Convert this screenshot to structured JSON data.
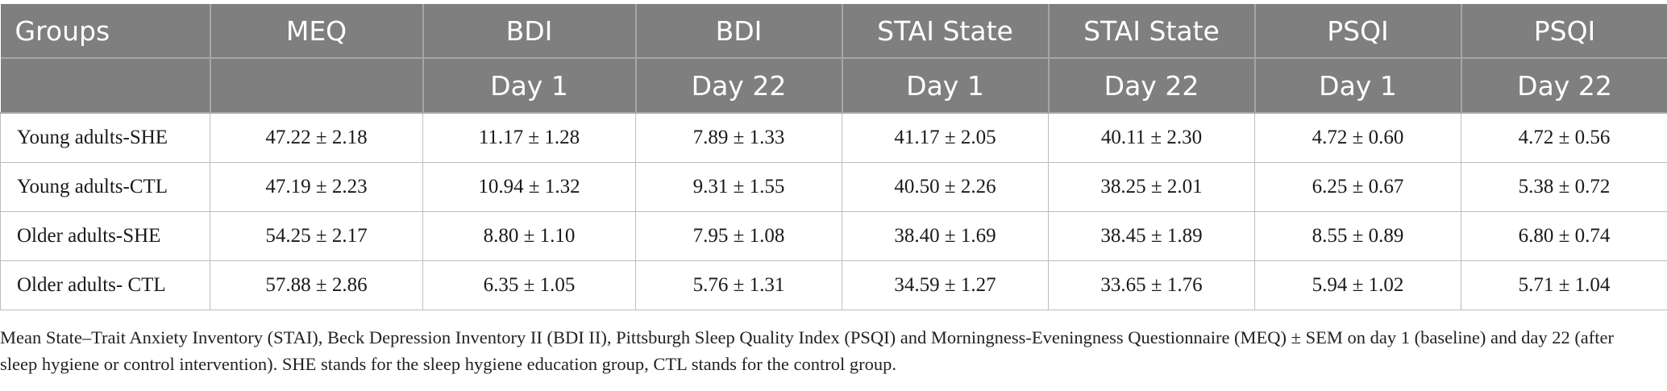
{
  "table": {
    "header_row1": [
      "Groups",
      "MEQ",
      "BDI",
      "BDI",
      "STAI State",
      "STAI State",
      "PSQI",
      "PSQI"
    ],
    "header_row2": [
      "",
      "",
      "Day 1",
      "Day 22",
      "Day 1",
      "Day 22",
      "Day 1",
      "Day 22"
    ],
    "rows": [
      [
        "Young adults-SHE",
        "47.22 ± 2.18",
        "11.17 ± 1.28",
        "7.89 ± 1.33",
        "41.17 ± 2.05",
        "40.11 ± 2.30",
        "4.72 ± 0.60",
        "4.72 ± 0.56"
      ],
      [
        "Young adults-CTL",
        "47.19 ± 2.23",
        "10.94 ± 1.32",
        "9.31 ± 1.55",
        "40.50 ± 2.26",
        "38.25 ± 2.01",
        "6.25 ± 0.67",
        "5.38 ± 0.72"
      ],
      [
        "Older adults-SHE",
        "54.25 ± 2.17",
        "8.80 ± 1.10",
        "7.95 ± 1.08",
        "38.40 ± 1.69",
        "38.45 ± 1.89",
        "8.55 ± 0.89",
        "6.80 ± 0.74"
      ],
      [
        "Older adults- CTL",
        "57.88 ± 2.86",
        "6.35 ± 1.05",
        "5.76 ± 1.31",
        "34.59 ± 1.27",
        "33.65 ± 1.76",
        "5.94 ± 1.02",
        "5.71 ± 1.04"
      ]
    ]
  },
  "caption": "Mean State–Trait Anxiety Inventory (STAI), Beck Depression Inventory II (BDI II), Pittsburgh Sleep Quality Index (PSQI) and Morningness-Eveningness Questionnaire (MEQ) ± SEM on day 1 (baseline) and day 22 (after sleep hygiene or control intervention). SHE stands for the sleep hygiene education group, CTL stands for the control group.",
  "colors": {
    "header_bg": "#7f7f7f",
    "header_text": "#ffffff",
    "grid": "#bdbdbd"
  }
}
